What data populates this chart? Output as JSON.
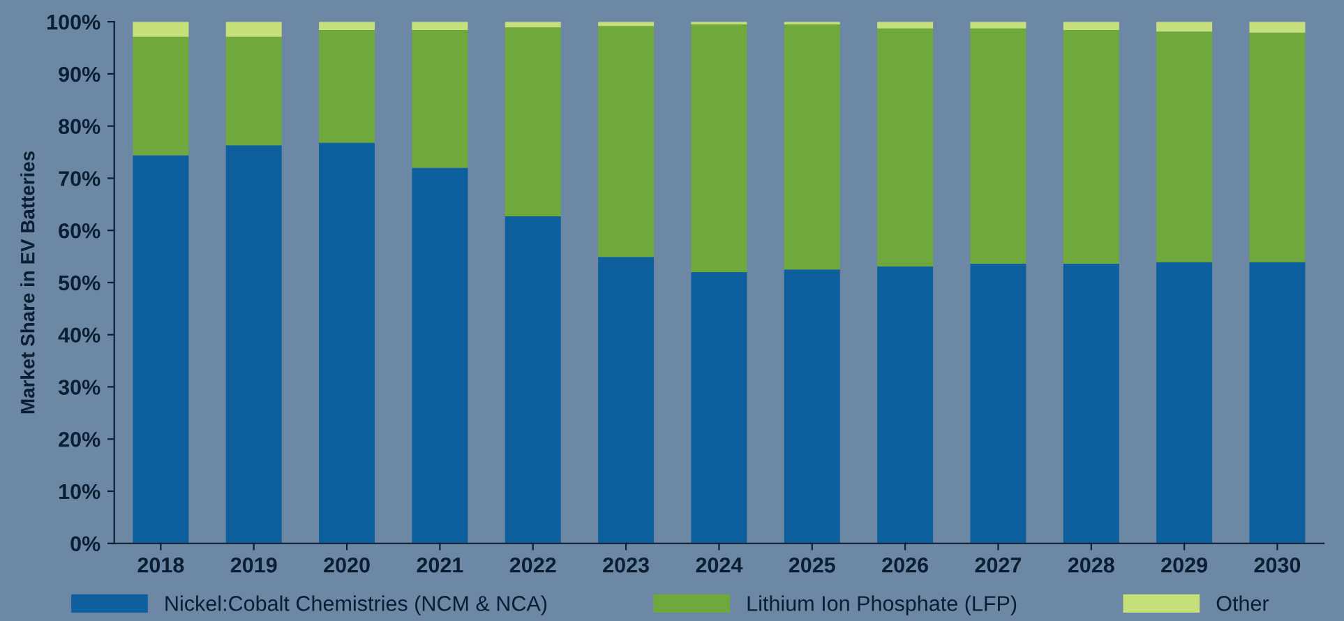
{
  "chart_data": {
    "type": "bar",
    "stacked": true,
    "ylabel": "Market Share in EV Batteries",
    "categories": [
      "2018",
      "2019",
      "2020",
      "2021",
      "2022",
      "2023",
      "2024",
      "2025",
      "2026",
      "2027",
      "2028",
      "2029",
      "2030"
    ],
    "series": [
      {
        "name": "Nickel:Cobalt Chemistries (NCM & NCA)",
        "color": "#0e5f9e",
        "values": [
          74.4,
          76.3,
          76.8,
          72.0,
          62.7,
          54.9,
          52.0,
          52.5,
          53.1,
          53.6,
          53.6,
          53.9,
          53.9
        ]
      },
      {
        "name": "Lithium Ion Phosphate (LFP)",
        "color": "#6fa83c",
        "values": [
          22.7,
          20.8,
          21.6,
          26.4,
          36.2,
          44.3,
          47.5,
          47.0,
          45.6,
          45.1,
          44.8,
          44.2,
          44.0
        ]
      },
      {
        "name": "Other",
        "color": "#c5df7a",
        "values": [
          2.9,
          2.9,
          1.6,
          1.6,
          1.1,
          0.8,
          0.5,
          0.5,
          1.3,
          1.3,
          1.6,
          1.9,
          2.1
        ]
      }
    ],
    "ylim": [
      0,
      100
    ],
    "yticks": [
      {
        "value": 0,
        "label": "0%"
      },
      {
        "value": 10,
        "label": "10%"
      },
      {
        "value": 20,
        "label": "20%"
      },
      {
        "value": 30,
        "label": "30%"
      },
      {
        "value": 40,
        "label": "40%"
      },
      {
        "value": 50,
        "label": "50%"
      },
      {
        "value": 60,
        "label": "60%"
      },
      {
        "value": 70,
        "label": "70%"
      },
      {
        "value": 80,
        "label": "80%"
      },
      {
        "value": 90,
        "label": "90%"
      },
      {
        "value": 100,
        "label": "100%"
      }
    ],
    "grid": false,
    "legend": "bottom"
  }
}
